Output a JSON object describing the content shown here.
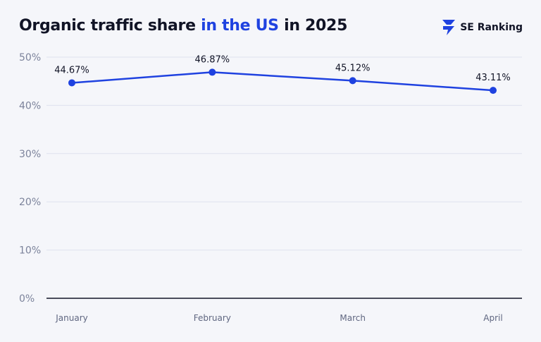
{
  "header": {
    "title_before": "Organic traffic share ",
    "title_highlight": "in the US",
    "title_after": " in 2025",
    "brand_name": "SE Ranking",
    "brand_icon": "se-ranking-logo-icon"
  },
  "colors": {
    "accent": "#1f42e0",
    "text": "#111426",
    "grid": "#dfe2ee",
    "axis": "#111426",
    "tick": "#7c839b",
    "background": "#f5f6fa"
  },
  "chart_data": {
    "type": "line",
    "title": "Organic traffic share in the US in 2025",
    "xlabel": "",
    "ylabel": "",
    "categories": [
      "January",
      "February",
      "March",
      "April"
    ],
    "series": [
      {
        "name": "Organic traffic share",
        "values": [
          44.67,
          46.87,
          45.12,
          43.11
        ],
        "labels": [
          "44.67%",
          "46.87%",
          "45.12%",
          "43.11%"
        ]
      }
    ],
    "ylim": [
      0,
      50
    ],
    "yticks": [
      0,
      10,
      20,
      30,
      40,
      50
    ],
    "ytick_labels": [
      "0%",
      "10%",
      "20%",
      "30%",
      "40%",
      "50%"
    ],
    "grid": true,
    "legend": "none"
  }
}
